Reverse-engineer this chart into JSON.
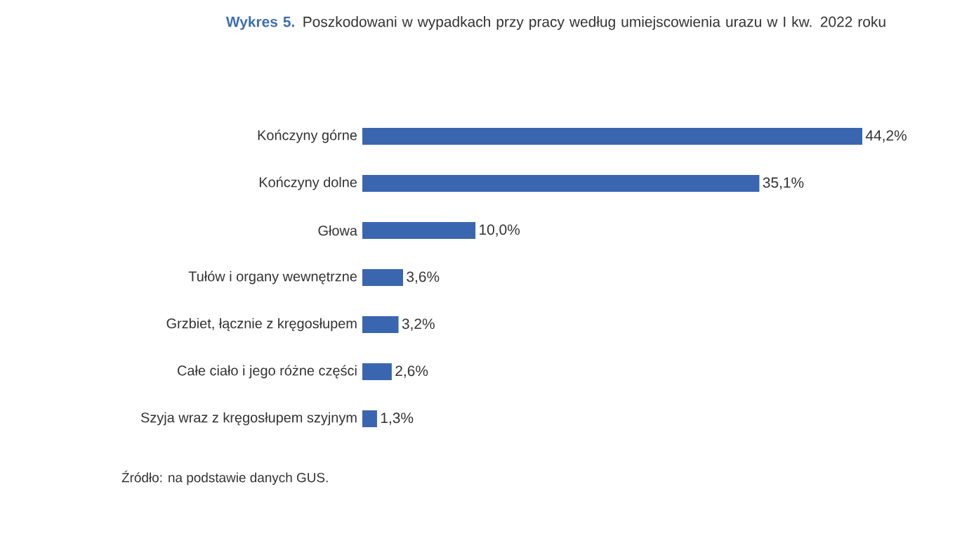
{
  "chart_data": {
    "type": "bar",
    "orientation": "horizontal",
    "title": "Wykres 5.",
    "subtitle": "Poszkodowani w wypadkach przy pracy według umiejscowienia urazu w I kw. 2022 roku",
    "categories": [
      "Kończyny górne",
      "Kończyny dolne",
      "Głowa",
      "Tułów i organy wewnętrzne",
      "Grzbiet, łącznie z kręgosłupem",
      "Całe ciało i jego różne części",
      "Szyja wraz z kręgosłupem szyjnym"
    ],
    "values": [
      44.2,
      35.1,
      10.0,
      3.6,
      3.2,
      2.6,
      1.3
    ],
    "value_labels": [
      "44,2%",
      "35,1%",
      "10,0%",
      "3,6%",
      "3,2%",
      "2,6%",
      "1,3%"
    ],
    "color": "#3a66b0",
    "annotations": [
      "Źródło: na podstawie danych GUS."
    ]
  }
}
